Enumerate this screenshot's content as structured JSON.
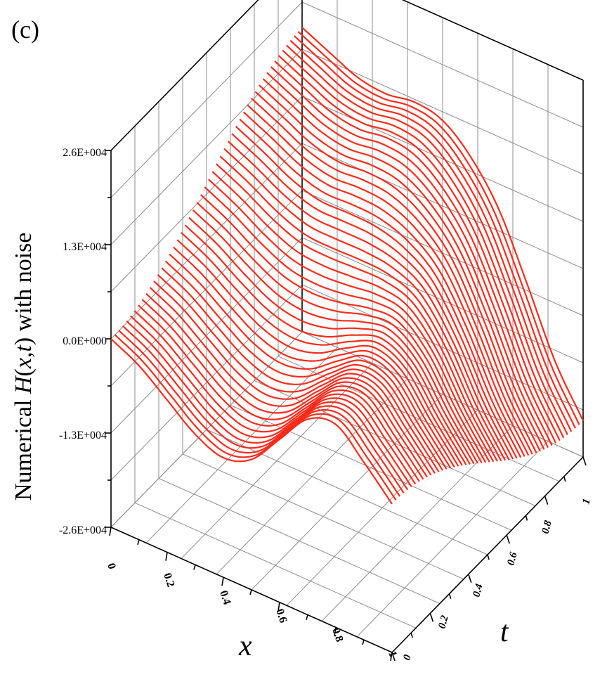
{
  "panel_label": "(c)",
  "chart_data": {
    "type": "surface-3d",
    "title": "",
    "zlabel_prefix": "Numerical ",
    "zlabel_func": "H",
    "zlabel_args_open": "(",
    "zlabel_x": "x",
    "zlabel_comma": ",",
    "zlabel_t": "t",
    "zlabel_args_close": ")",
    "zlabel_suffix": " with noise",
    "xlabel": "x",
    "ylabel": "t",
    "xlim": [
      0,
      1
    ],
    "tlim": [
      0,
      1
    ],
    "zlim": [
      -26000,
      26000
    ],
    "z_ticks": [
      "2.6E+004",
      "1.3E+004",
      "0.0E+000",
      "-1.3E+004",
      "-2.6E+004"
    ],
    "x_ticks": [
      "0",
      "0.2",
      "0.4",
      "0.6",
      "0.8",
      "1"
    ],
    "t_ticks": [
      "0",
      "0.2",
      "0.4",
      "0.6",
      "0.8",
      "1"
    ],
    "series_color": "#ff2a1a",
    "n_curves": 50,
    "x_sample": [
      0,
      0.1,
      0.2,
      0.3,
      0.4,
      0.5,
      0.6,
      0.7,
      0.8,
      0.9,
      1.0
    ],
    "z_at_t0": [
      0,
      -2000,
      -5000,
      -8000,
      -9500,
      -8000,
      -3500,
      1000,
      2000,
      -1500,
      -5500
    ],
    "z_at_t1": [
      16000,
      14200,
      12500,
      12000,
      12600,
      11800,
      8500,
      3000,
      -5500,
      -14500,
      -21000
    ]
  }
}
